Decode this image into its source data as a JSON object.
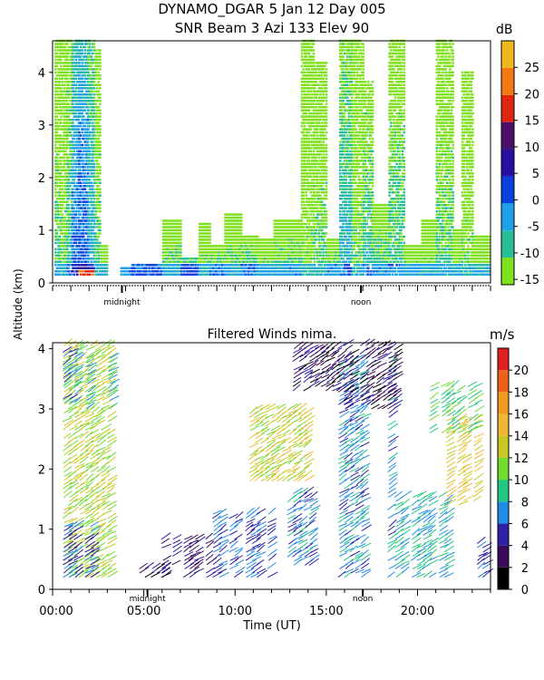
{
  "titles": {
    "main": "DYNAMO_DGAR    5 Jan 12 Day 005",
    "sub": "SNR Beam 3 Azi 133 Elev 90",
    "winds": "Filtered Winds nima.",
    "unit_snr": "dB",
    "unit_wind": "m/s",
    "y_axis": "Altitude (km)",
    "x_axis": "Time (UT)"
  },
  "chart_data": [
    {
      "type": "heatmap",
      "title": "SNR Beam 3 Azi 133 Elev 90",
      "ylabel": "Altitude (km)",
      "xlim": [
        0,
        24
      ],
      "ylim": [
        0,
        4.6
      ],
      "y_ticks": [
        0,
        1,
        2,
        3,
        4
      ],
      "x_markers": [
        {
          "x": 3.8,
          "label": "midnight"
        },
        {
          "x": 16.9,
          "label": "noon"
        }
      ],
      "colorbar": {
        "unit": "dB",
        "ticks": [
          -15,
          -10,
          -5,
          0,
          5,
          10,
          15,
          20,
          25
        ],
        "range": [
          -16,
          30
        ],
        "colors": [
          "#7fe01c",
          "#27bf9a",
          "#1fa0e8",
          "#0b3ee0",
          "#2a0ea0",
          "#4b0f6a",
          "#e02410",
          "#f07a10",
          "#f0b820"
        ]
      },
      "columns": [
        {
          "x0": 0.1,
          "x1": 0.4,
          "top": 4.6,
          "peak": -9
        },
        {
          "x0": 0.4,
          "x1": 0.75,
          "top": 4.6,
          "peak": -11
        },
        {
          "x0": 0.75,
          "x1": 1.05,
          "top": 4.6,
          "peak": -7
        },
        {
          "x0": 1.05,
          "x1": 1.4,
          "top": 4.6,
          "peak": 0
        },
        {
          "x0": 1.4,
          "x1": 1.9,
          "top": 4.6,
          "peak": 2
        },
        {
          "x0": 1.9,
          "x1": 2.3,
          "top": 4.6,
          "peak": -3
        },
        {
          "x0": 2.3,
          "x1": 2.6,
          "top": 4.4,
          "peak": -9
        },
        {
          "x0": 2.6,
          "x1": 3.0,
          "top": 0.7,
          "peak": -10
        },
        {
          "x0": 3.7,
          "x1": 4.3,
          "top": 0.3,
          "peak": -8
        },
        {
          "x0": 4.3,
          "x1": 6.0,
          "top": 0.35,
          "peak": -5
        },
        {
          "x0": 6.0,
          "x1": 7.0,
          "top": 1.2,
          "peak": -9
        },
        {
          "x0": 7.0,
          "x1": 8.0,
          "top": 0.45,
          "peak": -4
        },
        {
          "x0": 8.0,
          "x1": 8.6,
          "top": 1.1,
          "peak": -10
        },
        {
          "x0": 8.6,
          "x1": 9.4,
          "top": 0.7,
          "peak": -7
        },
        {
          "x0": 9.4,
          "x1": 10.3,
          "top": 1.3,
          "peak": -9
        },
        {
          "x0": 10.3,
          "x1": 11.2,
          "top": 0.9,
          "peak": -7
        },
        {
          "x0": 11.2,
          "x1": 12.1,
          "top": 0.8,
          "peak": -9
        },
        {
          "x0": 12.1,
          "x1": 12.9,
          "top": 1.2,
          "peak": -9
        },
        {
          "x0": 12.9,
          "x1": 13.6,
          "top": 1.2,
          "peak": -8
        },
        {
          "x0": 13.6,
          "x1": 14.3,
          "top": 4.6,
          "peak": -12
        },
        {
          "x0": 14.3,
          "x1": 15.0,
          "top": 4.2,
          "peak": -10
        },
        {
          "x0": 15.0,
          "x1": 15.7,
          "top": 0.8,
          "peak": -8
        },
        {
          "x0": 15.7,
          "x1": 16.4,
          "top": 4.6,
          "peak": -5
        },
        {
          "x0": 16.4,
          "x1": 17.0,
          "top": 4.6,
          "peak": -11
        },
        {
          "x0": 17.0,
          "x1": 17.5,
          "top": 3.8,
          "peak": -7
        },
        {
          "x0": 17.5,
          "x1": 18.4,
          "top": 1.5,
          "peak": -8
        },
        {
          "x0": 18.4,
          "x1": 19.2,
          "top": 4.6,
          "peak": -8
        },
        {
          "x0": 19.2,
          "x1": 20.2,
          "top": 0.7,
          "peak": -9
        },
        {
          "x0": 20.2,
          "x1": 21.0,
          "top": 1.2,
          "peak": -10
        },
        {
          "x0": 21.0,
          "x1": 21.9,
          "top": 4.6,
          "peak": -9
        },
        {
          "x0": 21.9,
          "x1": 22.4,
          "top": 1.0,
          "peak": -10
        },
        {
          "x0": 22.4,
          "x1": 23.0,
          "top": 4.0,
          "peak": -11
        },
        {
          "x0": 23.0,
          "x1": 23.9,
          "top": 0.9,
          "peak": -10
        }
      ]
    },
    {
      "type": "scatter",
      "title": "Filtered Winds nima.",
      "xlabel": "Time (UT)",
      "ylabel": "Altitude (km)",
      "xlim": [
        0,
        24
      ],
      "ylim": [
        0,
        4.1
      ],
      "x_ticks": [
        "00:00",
        "05:00",
        "10:00",
        "15:00",
        "20:00"
      ],
      "x_tick_values": [
        0,
        5,
        10,
        15,
        20
      ],
      "y_ticks": [
        0,
        1,
        2,
        3,
        4
      ],
      "x_markers": [
        {
          "x": 5.2,
          "label": "midnight"
        },
        {
          "x": 17.0,
          "label": "noon"
        }
      ],
      "colorbar": {
        "unit": "m/s",
        "ticks": [
          0,
          2,
          4,
          6,
          8,
          10,
          12,
          14,
          16,
          18,
          20
        ],
        "range": [
          0,
          22
        ],
        "colors": [
          "#000000",
          "#3a0a5a",
          "#2d1fa8",
          "#1f8ce8",
          "#20c880",
          "#70dc30",
          "#c8c820",
          "#f0b830",
          "#f09a20",
          "#f06018",
          "#e02020"
        ]
      },
      "wind_regions": [
        {
          "t0": 0.6,
          "t1": 3.1,
          "h0": 0.2,
          "h1": 4.05,
          "speed": 12
        },
        {
          "t0": 0.6,
          "t1": 1.4,
          "h0": 3.1,
          "h1": 4.05,
          "speed": 7
        },
        {
          "t0": 1.6,
          "t1": 3.1,
          "h0": 3.0,
          "h1": 3.9,
          "speed": 8
        },
        {
          "t0": 0.6,
          "t1": 2.4,
          "h0": 0.2,
          "h1": 1.1,
          "speed": 6
        },
        {
          "t0": 4.8,
          "t1": 6.2,
          "h0": 0.2,
          "h1": 0.4,
          "speed": 3
        },
        {
          "t0": 6.0,
          "t1": 9.0,
          "h0": 0.2,
          "h1": 0.9,
          "speed": 4
        },
        {
          "t0": 8.8,
          "t1": 12.5,
          "h0": 0.2,
          "h1": 1.3,
          "speed": 6
        },
        {
          "t0": 10.8,
          "t1": 14.2,
          "h0": 1.8,
          "h1": 3.0,
          "speed": 13
        },
        {
          "t0": 12.6,
          "t1": 14.4,
          "h0": 0.4,
          "h1": 1.6,
          "speed": 7
        },
        {
          "t0": 13.2,
          "t1": 15.8,
          "h0": 3.3,
          "h1": 4.05,
          "speed": 3
        },
        {
          "t0": 15.7,
          "t1": 19.0,
          "h0": 0.2,
          "h1": 3.9,
          "speed": 7
        },
        {
          "t0": 16.0,
          "t1": 19.2,
          "h0": 3.0,
          "h1": 4.05,
          "speed": 3
        },
        {
          "t0": 18.8,
          "t1": 21.8,
          "h0": 0.2,
          "h1": 1.6,
          "speed": 8
        },
        {
          "t0": 21.0,
          "t1": 23.8,
          "h0": 1.4,
          "h1": 2.8,
          "speed": 14
        },
        {
          "t0": 20.4,
          "t1": 23.2,
          "h0": 2.6,
          "h1": 3.4,
          "speed": 10
        },
        {
          "t0": 23.0,
          "t1": 23.9,
          "h0": 0.2,
          "h1": 0.8,
          "speed": 6
        }
      ]
    }
  ]
}
